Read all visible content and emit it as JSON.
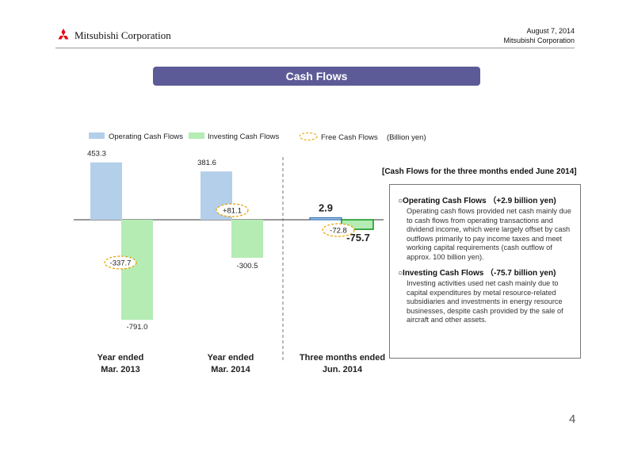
{
  "header": {
    "company": "Mitsubishi Corporation",
    "date": "August 7, 2014",
    "company_short": "Mitsubishi Corporation",
    "colors": {
      "logo": "#e60012",
      "title_bar": "#5d5b97"
    }
  },
  "title": "Cash Flows",
  "page_number": "4",
  "chart_data": {
    "type": "bar",
    "unit_label": "(Billion yen)",
    "legend": [
      "Operating Cash Flows",
      "Investing Cash Flows",
      "Free Cash Flows"
    ],
    "categories": [
      {
        "line1": "Year ended",
        "line2": "Mar. 2013"
      },
      {
        "line1": "Year ended",
        "line2": "Mar. 2014"
      },
      {
        "line1": "Three months ended",
        "line2": "Jun. 2014"
      }
    ],
    "series": [
      {
        "name": "Operating Cash Flows",
        "color": "#b4cfea",
        "values": [
          453.3,
          381.6,
          2.9
        ],
        "labels": [
          "453.3",
          "381.6",
          "2.9"
        ]
      },
      {
        "name": "Investing Cash Flows",
        "color": "#b4ecb4",
        "values": [
          -791.0,
          -300.5,
          -75.7
        ],
        "labels": [
          "-791.0",
          "-300.5",
          "-75.7"
        ]
      }
    ],
    "free_cash_flows": {
      "name": "Free Cash Flows",
      "values": [
        -337.7,
        81.1,
        -72.8
      ],
      "labels": [
        "-337.7",
        "+81.1",
        "-72.8"
      ]
    }
  },
  "box": {
    "title": "[Cash Flows for the three months ended June 2014]",
    "operating_heading": "○Operating Cash Flows （+2.9 billion yen)",
    "operating_text": "Operating cash flows provided net cash mainly due to cash flows from operating transactions and dividend income, which were largely offset by cash outflows primarily to pay income taxes and meet working capital requirements (cash outflow of approx. 100 billion yen).",
    "investing_heading": "○Investing Cash Flows （-75.7 billion yen)",
    "investing_text": "Investing activities used net cash mainly due to capital expenditures by metal resource-related subsidiaries and investments in energy resource businesses, despite cash provided by the sale of aircraft and other assets."
  }
}
